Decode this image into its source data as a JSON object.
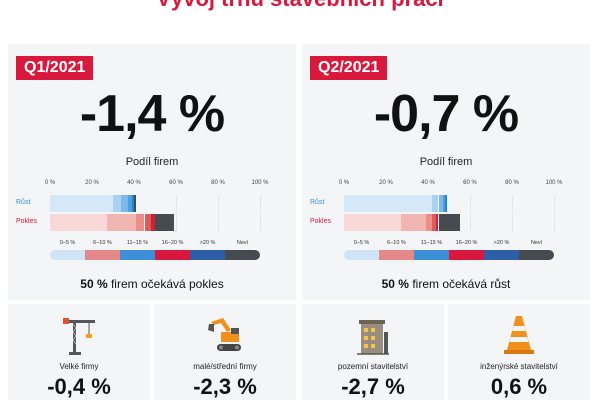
{
  "title": "Vývoj trhu stavebních prací",
  "chart_data": [
    {
      "type": "bar",
      "quarter": "Q1/2021",
      "headline": "-1,4 %",
      "title": "Podíl firem",
      "xlim": [
        0,
        100
      ],
      "x_ticks": [
        "0 %",
        "20 %",
        "40 %",
        "60 %",
        "80 %",
        "100 %"
      ],
      "categories": [
        "Růst",
        "Pokles"
      ],
      "legend": [
        "0–5 %",
        "6–10 %",
        "11–15 %",
        "16–20 %",
        ">20 %",
        "Neví"
      ],
      "series": [
        {
          "name": "0–5 %",
          "values": [
            30,
            27
          ]
        },
        {
          "name": "6–10 %",
          "values": [
            4,
            14
          ]
        },
        {
          "name": "11–15 %",
          "values": [
            3,
            4
          ]
        },
        {
          "name": "16–20 %",
          "values": [
            2,
            3
          ]
        },
        {
          "name": ">20 %",
          "values": [
            1,
            2
          ]
        },
        {
          "name": "Neví",
          "values": [
            1,
            9
          ]
        }
      ],
      "note_bold": "50 %",
      "note_text": " firem očekává pokles"
    },
    {
      "type": "bar",
      "quarter": "Q2/2021",
      "headline": "-0,7 %",
      "title": "Podíl firem",
      "xlim": [
        0,
        100
      ],
      "x_ticks": [
        "0 %",
        "20 %",
        "40 %",
        "60 %",
        "80 %",
        "100 %"
      ],
      "categories": [
        "Růst",
        "Pokles"
      ],
      "legend": [
        "0–5 %",
        "6–10 %",
        "11–15 %",
        "16–20 %",
        ">20 %",
        "Neví"
      ],
      "series": [
        {
          "name": "0–5 %",
          "values": [
            42,
            27
          ]
        },
        {
          "name": "6–10 %",
          "values": [
            3,
            12
          ]
        },
        {
          "name": "11–15 %",
          "values": [
            2,
            3
          ]
        },
        {
          "name": "16–20 %",
          "values": [
            1,
            2
          ]
        },
        {
          "name": ">20 %",
          "values": [
            1,
            1
          ]
        },
        {
          "name": "Neví",
          "values": [
            0,
            10
          ]
        }
      ],
      "note_bold": "50 %",
      "note_text": " firem očekává růst"
    }
  ],
  "series_colors": {
    "Růst": [
      "#d4e8f8",
      "#a9d1f1",
      "#7fb9e8",
      "#4ea0df",
      "#1f86d6",
      "#464a51"
    ],
    "Pokles": [
      "#f8d9d8",
      "#f1b5b2",
      "#e98e8a",
      "#dd5b5a",
      "#cc2234",
      "#464a51"
    ],
    "legend": [
      "#cfe4f6",
      "#e5888a",
      "#3d8fd9",
      "#d8183c",
      "#2e5ea8",
      "#464a51"
    ]
  },
  "cards": [
    {
      "label": "Velké firmy",
      "value": "-0,4 %",
      "icon": "crane-icon"
    },
    {
      "label": "malé/střední firmy",
      "value": "-2,3 %",
      "icon": "excavator-icon"
    },
    {
      "label": "pozemní stavitelství",
      "value": "-2,7 %",
      "icon": "building-icon"
    },
    {
      "label": "inženýrské stavitelství",
      "value": "0,6 %",
      "icon": "traffic-cone-icon"
    }
  ]
}
